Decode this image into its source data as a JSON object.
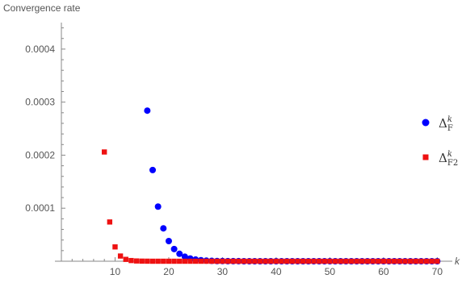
{
  "chart_data": {
    "type": "scatter",
    "title": "",
    "ylabel": "Convergence rate",
    "xlabel": "k",
    "xlim": [
      0,
      71
    ],
    "ylim": [
      0,
      0.00045
    ],
    "x_ticks": [
      10,
      20,
      30,
      40,
      50,
      60,
      70
    ],
    "y_ticks": [
      0.0001,
      0.0002,
      0.0003,
      0.0004
    ],
    "y_tick_labels": [
      "0.0001",
      "0.0002",
      "0.0003",
      "0.0004"
    ],
    "legend_position": "right",
    "series": [
      {
        "name": "Δ_F^k",
        "name_base": "Δ",
        "name_sub": "F",
        "name_sup": "k",
        "color": "#0000ff",
        "marker": "circle",
        "x": [
          16,
          17,
          18,
          19,
          20,
          21,
          22,
          23,
          24,
          25,
          26,
          27,
          28,
          29,
          30,
          31,
          32,
          33,
          34,
          35,
          36,
          37,
          38,
          39,
          40,
          41,
          42,
          43,
          44,
          45,
          46,
          47,
          48,
          49,
          50,
          51,
          52,
          53,
          54,
          55,
          56,
          57,
          58,
          59,
          60,
          61,
          62,
          63,
          64,
          65,
          66,
          67,
          68,
          69,
          70
        ],
        "y": [
          0.000284,
          0.000172,
          0.000103,
          6.2e-05,
          3.8e-05,
          2.3e-05,
          1.4e-05,
          8.5e-06,
          5.2e-06,
          3.2e-06,
          1.9e-06,
          1.2e-06,
          7e-07,
          4e-07,
          3e-07,
          2e-07,
          1e-07,
          1e-07,
          0,
          0,
          0,
          0,
          0,
          0,
          0,
          0,
          0,
          0,
          0,
          0,
          0,
          0,
          0,
          0,
          0,
          0,
          0,
          0,
          0,
          0,
          0,
          0,
          0,
          0,
          0,
          0,
          0,
          0,
          0,
          0,
          0,
          0,
          0,
          0,
          0
        ]
      },
      {
        "name": "Δ_F2^k",
        "name_base": "Δ",
        "name_sub": "F2",
        "name_sup": "k",
        "color": "#ee1111",
        "marker": "square",
        "x": [
          8,
          9,
          10,
          11,
          12,
          13,
          14,
          15,
          16,
          17,
          18,
          19,
          20,
          21,
          22,
          23,
          24,
          25,
          26,
          27,
          28,
          29,
          30,
          31,
          32,
          33,
          34,
          35,
          36,
          37,
          38,
          39,
          40,
          41,
          42,
          43,
          44,
          45,
          46,
          47,
          48,
          49,
          50,
          51,
          52,
          53,
          54,
          55,
          56,
          57,
          58,
          59,
          60,
          61,
          62,
          63,
          64,
          65,
          66,
          67,
          68,
          69,
          70
        ],
        "y": [
          0.000206,
          7.4e-05,
          2.7e-05,
          9.8e-06,
          3.5e-06,
          1.3e-06,
          5e-07,
          2e-07,
          1e-07,
          0,
          0,
          0,
          0,
          0,
          0,
          0,
          0,
          0,
          0,
          0,
          0,
          0,
          0,
          0,
          0,
          0,
          0,
          0,
          0,
          0,
          0,
          0,
          0,
          0,
          0,
          0,
          0,
          0,
          0,
          0,
          0,
          0,
          0,
          0,
          0,
          0,
          0,
          0,
          0,
          0,
          0,
          0,
          0,
          0,
          0,
          0,
          0,
          0,
          0,
          0,
          0,
          0,
          0
        ]
      }
    ]
  }
}
